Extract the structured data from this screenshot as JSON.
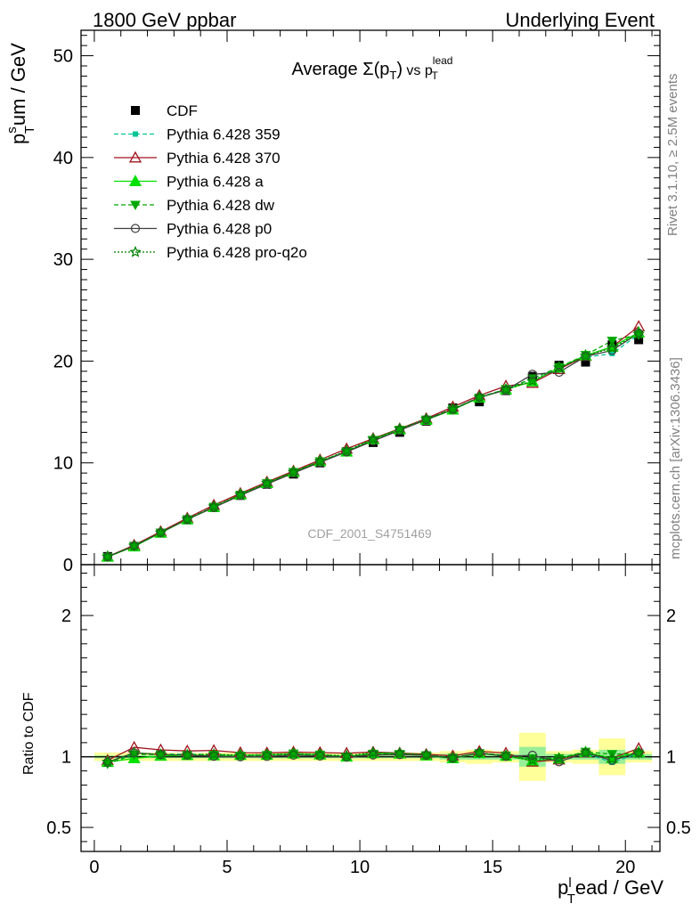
{
  "header": {
    "left": "1800 GeV ppbar",
    "right": "Underlying Event"
  },
  "side": {
    "rivet": "Rivet 3.1.10, ≥ 2.5M events",
    "mcplots": "mcplots.cern.ch [arXiv:1306.3436]"
  },
  "watermark": "CDF_2001_S4751469",
  "chart_data": {
    "type": "line",
    "title": "Average Σ(pT) vs pT lead",
    "title_parts": {
      "average": "Average ",
      "sigma": "Σ(p",
      "sub_t": "T",
      "close": ")",
      "vs": " vs p",
      "sup_lead": "lead",
      "sub_t2": "T"
    },
    "xlabel": "p_T^lead / GeV",
    "xlabel_parts": {
      "p": "p",
      "sub_t": "T",
      "sup_l": "l",
      "rest": "ead / GeV"
    },
    "ylabel": "p_T^sum / GeV",
    "ylabel_parts": {
      "p": "p",
      "sub_t": "T",
      "sup_s": "s",
      "rest": "um / GeV"
    },
    "ratio_ylabel": "Ratio to CDF",
    "xlim": [
      -0.5,
      21.3
    ],
    "ylim": [
      0,
      52.5
    ],
    "ratio_ylim": [
      0.33,
      2.36
    ],
    "x_ticks": [
      0,
      5,
      10,
      15,
      20
    ],
    "y_ticks": [
      0,
      10,
      20,
      30,
      40,
      50
    ],
    "ratio_ticks": [
      0.5,
      1,
      2
    ],
    "x": [
      0.5,
      1.5,
      2.5,
      3.5,
      4.5,
      5.5,
      6.5,
      7.5,
      8.5,
      9.5,
      10.5,
      11.5,
      12.5,
      13.5,
      14.5,
      15.5,
      16.5,
      17.5,
      18.5,
      19.5,
      20.5
    ],
    "data": {
      "name": "CDF",
      "values": [
        0.8,
        1.8,
        3.1,
        4.4,
        5.6,
        6.8,
        7.9,
        8.9,
        10.0,
        11.1,
        12.0,
        13.0,
        14.1,
        15.4,
        16.0,
        17.1,
        18.5,
        19.6,
        19.9,
        21.6,
        22.1
      ],
      "band": [
        0.03,
        0.03,
        0.03,
        0.03,
        0.03,
        0.03,
        0.03,
        0.03,
        0.03,
        0.03,
        0.03,
        0.03,
        0.03,
        0.04,
        0.05,
        0.04,
        0.17,
        0.04,
        0.05,
        0.13,
        0.04
      ],
      "band_inner": [
        0.01,
        0.01,
        0.01,
        0.01,
        0.01,
        0.01,
        0.01,
        0.01,
        0.01,
        0.01,
        0.01,
        0.01,
        0.01,
        0.02,
        0.02,
        0.02,
        0.07,
        0.02,
        0.02,
        0.05,
        0.02
      ]
    },
    "series": [
      {
        "name": "Pythia 6.428 359",
        "color": "#00c497",
        "marker": "square-small",
        "dash": "5,3",
        "values": [
          0.76,
          1.84,
          3.16,
          4.48,
          5.7,
          6.85,
          8.0,
          9.05,
          10.15,
          11.15,
          12.3,
          13.25,
          14.3,
          15.3,
          16.45,
          17.25,
          18.25,
          19.4,
          20.35,
          20.75,
          22.6
        ]
      },
      {
        "name": "Pythia 6.428 370",
        "color": "#a0141e",
        "marker": "triangle-open",
        "dash": "",
        "values": [
          0.78,
          1.92,
          3.25,
          4.58,
          5.85,
          7.0,
          8.12,
          9.2,
          10.3,
          11.38,
          12.4,
          13.35,
          14.35,
          15.5,
          16.62,
          17.55,
          17.85,
          19.2,
          20.5,
          21.4,
          23.4
        ]
      },
      {
        "name": "Pythia 6.428 a",
        "color": "#00e000",
        "marker": "triangle",
        "dash": "",
        "values": [
          0.77,
          1.78,
          3.12,
          4.45,
          5.65,
          6.88,
          8.0,
          9.1,
          10.15,
          11.1,
          12.3,
          13.28,
          14.22,
          15.22,
          16.4,
          17.2,
          18.0,
          19.35,
          20.55,
          21.4,
          22.8
        ]
      },
      {
        "name": "Pythia 6.428 dw",
        "color": "#00a800",
        "marker": "triangle-down",
        "dash": "5,3",
        "values": [
          0.76,
          1.83,
          3.15,
          4.45,
          5.68,
          6.85,
          8.0,
          9.1,
          10.15,
          11.1,
          12.25,
          13.25,
          14.25,
          15.3,
          16.4,
          17.25,
          18.3,
          19.4,
          20.6,
          22.0,
          22.6
        ]
      },
      {
        "name": "Pythia 6.428 p0",
        "color": "#404040",
        "marker": "circle-open",
        "dash": "",
        "values": [
          0.77,
          1.85,
          3.15,
          4.45,
          5.62,
          6.8,
          7.92,
          9.0,
          10.05,
          11.08,
          12.15,
          13.2,
          14.25,
          15.25,
          16.45,
          17.15,
          18.7,
          18.9,
          20.45,
          21.05,
          22.75
        ]
      },
      {
        "name": "Pythia 6.428 pro-q2o",
        "color": "#008000",
        "marker": "star-open",
        "dash": "2,2",
        "values": [
          0.77,
          1.85,
          3.15,
          4.45,
          5.7,
          6.88,
          8.02,
          9.1,
          10.15,
          11.18,
          12.35,
          13.35,
          14.3,
          15.28,
          16.45,
          17.2,
          18.05,
          19.35,
          20.5,
          21.3,
          22.65
        ]
      }
    ],
    "legend_position": "top-left",
    "grid": false
  }
}
